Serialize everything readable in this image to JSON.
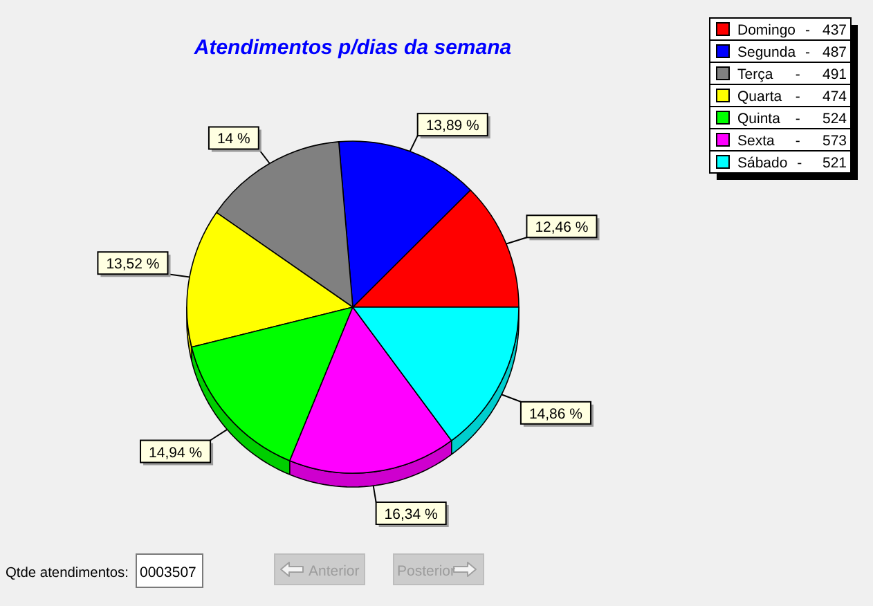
{
  "chart_data": {
    "type": "pie",
    "title": "Atendimentos p/dias da semana",
    "categories": [
      "Domingo - 437",
      "Segunda - 487",
      "Terça - 491",
      "Quarta - 474",
      "Quinta - 524",
      "Sexta - 573",
      "Sábado - 521"
    ],
    "values": [
      12.46,
      13.89,
      14,
      13.52,
      14.94,
      16.34,
      14.86
    ],
    "colors": [
      "#ff0000",
      "#0000ff",
      "#808080",
      "#ffff00",
      "#00ff00",
      "#ff00ff",
      "#00ffff"
    ],
    "value_labels": [
      "12,46 %",
      "13,89 %",
      "14 %",
      "13,52 %",
      "14,94 %",
      "16,34 %",
      "14,86 %"
    ],
    "legend": "top right",
    "annotations": [
      "Qtde atendimentos:",
      "0003507",
      "Anterior",
      "Posterior"
    ]
  }
}
